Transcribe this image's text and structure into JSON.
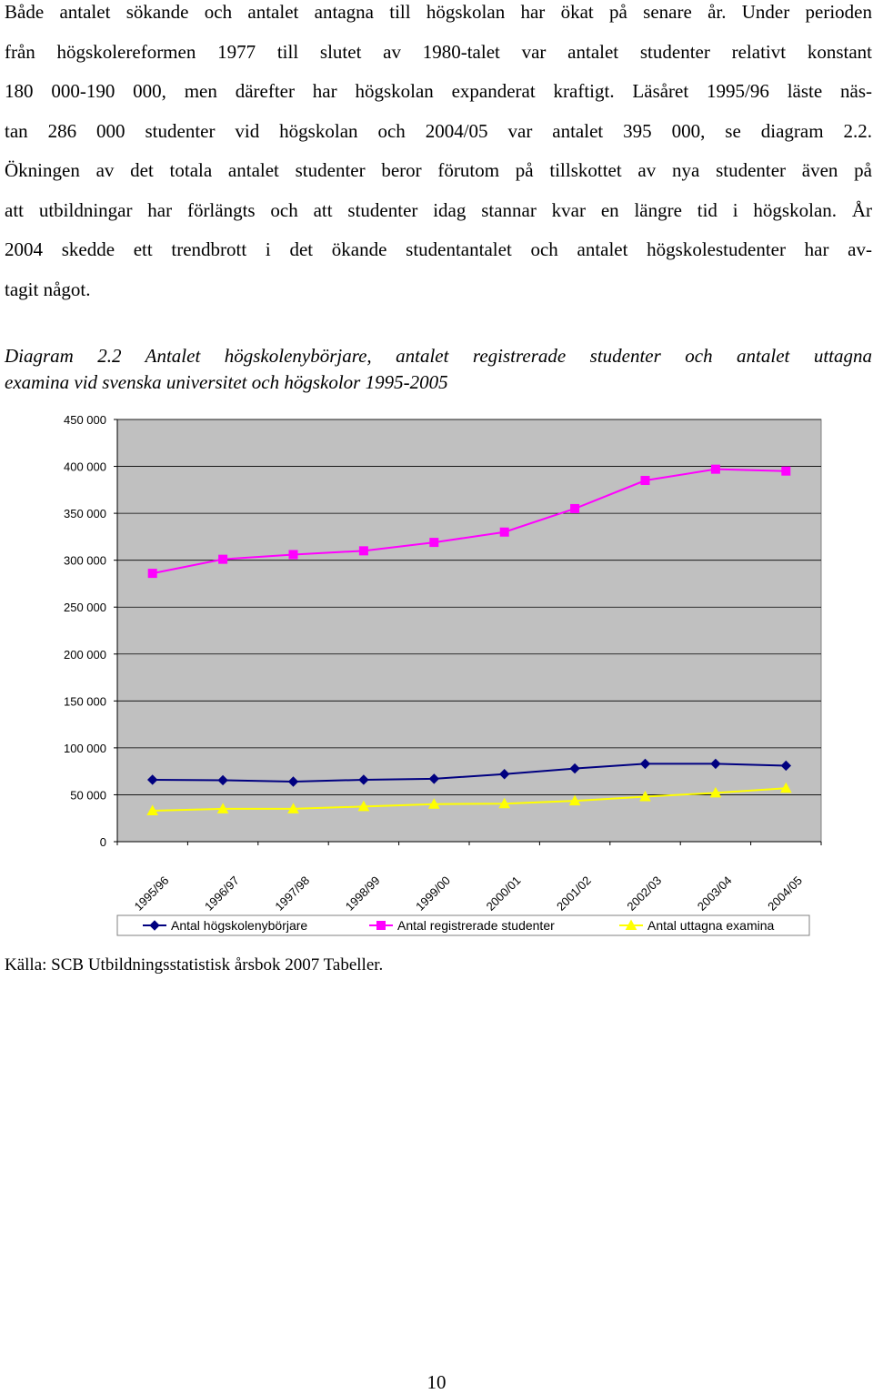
{
  "paragraph": {
    "lines": [
      "Både antalet sökande och antalet antagna till högskolan har ökat på senare år. Under perioden",
      "från högskolereformen 1977 till slutet av 1980-talet var antalet studenter relativt konstant",
      "180 000-190 000, men därefter har högskolan expanderat kraftigt. Läsåret 1995/96 läste näs-",
      "tan 286 000 studenter vid högskolan och 2004/05 var antalet 395 000, se diagram 2.2.",
      "Ökningen av det totala antalet studenter beror förutom på tillskottet av nya studenter även på",
      "att utbildningar har förlängts och att studenter idag stannar kvar en längre tid i högskolan. År",
      "2004 skedde ett trendbrott i det ökande studentantalet och antalet högskolestudenter har av-",
      "tagit något."
    ]
  },
  "caption": {
    "lines": [
      "Diagram 2.2 Antalet högskolenybörjare, antalet registrerade studenter och antalet uttagna",
      "examina vid svenska universitet och högskolor 1995-2005"
    ]
  },
  "chart_data": {
    "type": "line",
    "categories": [
      "1995/96",
      "1996/97",
      "1997/98",
      "1998/99",
      "1999/00",
      "2000/01",
      "2001/02",
      "2002/03",
      "2003/04",
      "2004/05"
    ],
    "ylim": [
      0,
      450000
    ],
    "y_ticks": [
      0,
      50000,
      100000,
      150000,
      200000,
      250000,
      300000,
      350000,
      400000,
      450000
    ],
    "y_tick_labels": [
      "0",
      "50 000",
      "100 000",
      "150 000",
      "200 000",
      "250 000",
      "300 000",
      "350 000",
      "400 000",
      "450 000"
    ],
    "plot_background": "#c0c0c0",
    "grid": true,
    "legend_position": "bottom",
    "series": [
      {
        "name": "Antal högskolenybörjare",
        "color": "#000080",
        "marker": "diamond",
        "values": [
          66000,
          65500,
          64000,
          66000,
          67000,
          72000,
          78000,
          83000,
          83000,
          81000
        ]
      },
      {
        "name": "Antal registrerade studenter",
        "color": "#ff00ff",
        "marker": "square",
        "values": [
          286000,
          301000,
          306000,
          310000,
          319000,
          330000,
          355000,
          385000,
          397000,
          395000
        ]
      },
      {
        "name": "Antal uttagna examina",
        "color": "#ffff00",
        "marker": "triangle",
        "values": [
          33000,
          35000,
          35000,
          37500,
          40000,
          40500,
          43500,
          48000,
          52000,
          57000
        ]
      }
    ]
  },
  "source": "Källa: SCB Utbildningsstatistisk årsbok 2007 Tabeller.",
  "page_number": "10"
}
